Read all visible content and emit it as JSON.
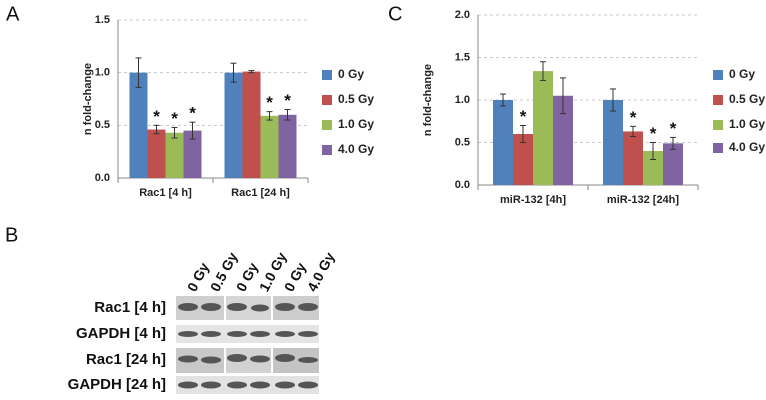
{
  "chart_data": [
    {
      "type": "bar",
      "panel_label": "A",
      "y_label": "n fold-change",
      "categories": [
        "Rac1 [4 h]",
        "Rac1 [24 h]"
      ],
      "ylim": [
        0,
        1.5
      ],
      "yticks": [
        {
          "value": 0,
          "label": "0.0"
        },
        0.5,
        {
          "value": 1,
          "label": "1.0"
        },
        1.5
      ],
      "grid": true,
      "legend": "right",
      "series": [
        {
          "name": "0 Gy",
          "color": "#4f81bd",
          "values": [
            1.0,
            1.0
          ],
          "errors": [
            0.14,
            0.09
          ]
        },
        {
          "name": "0.5 Gy",
          "color": "#c0504d",
          "values": [
            0.46,
            1.01
          ],
          "errors": [
            0.04,
            0.01
          ],
          "significance": [
            "*",
            null
          ]
        },
        {
          "name": "1.0 Gy",
          "color": "#9bbb59",
          "values": [
            0.43,
            0.59
          ],
          "errors": [
            0.05,
            0.04
          ],
          "significance": [
            "*",
            "*"
          ]
        },
        {
          "name": "4.0 Gy",
          "color": "#8064a2",
          "values": [
            0.45,
            0.6
          ],
          "errors": [
            0.08,
            0.05
          ],
          "significance": [
            "*",
            "*"
          ]
        }
      ]
    },
    {
      "type": "bar",
      "panel_label": "C",
      "y_label": "n fold-change",
      "categories": [
        "miR-132 [4h]",
        "miR-132 [24h]"
      ],
      "ylim": [
        0,
        2
      ],
      "yticks": [
        {
          "value": 0,
          "label": "0.0"
        },
        0.5,
        {
          "value": 1,
          "label": "1.0"
        },
        1.5,
        {
          "value": 2,
          "label": "2.0"
        }
      ],
      "grid": true,
      "legend": "right",
      "series": [
        {
          "name": "0 Gy",
          "color": "#4f81bd",
          "values": [
            1.0,
            1.0
          ],
          "errors": [
            0.07,
            0.13
          ]
        },
        {
          "name": "0.5 Gy",
          "color": "#c0504d",
          "values": [
            0.6,
            0.63
          ],
          "errors": [
            0.1,
            0.06
          ],
          "significance": [
            "*",
            "*"
          ]
        },
        {
          "name": "1.0 Gy",
          "color": "#9bbb59",
          "values": [
            1.34,
            0.4
          ],
          "errors": [
            0.11,
            0.1
          ],
          "significance": [
            null,
            "*"
          ]
        },
        {
          "name": "4.0 Gy",
          "color": "#8064a2",
          "values": [
            1.05,
            0.49
          ],
          "errors": [
            0.21,
            0.07
          ],
          "significance": [
            null,
            "*"
          ]
        }
      ]
    }
  ],
  "blot": {
    "panel_label": "B",
    "lanes": [
      "0 Gy",
      "0.5 Gy",
      "0 Gy",
      "1.0 Gy",
      "0 Gy",
      "4.0 Gy"
    ],
    "rows": [
      "Rac1 [4 h]",
      "GAPDH [4 h]",
      "Rac1 [24 h]",
      "GAPDH [24 h]"
    ]
  }
}
